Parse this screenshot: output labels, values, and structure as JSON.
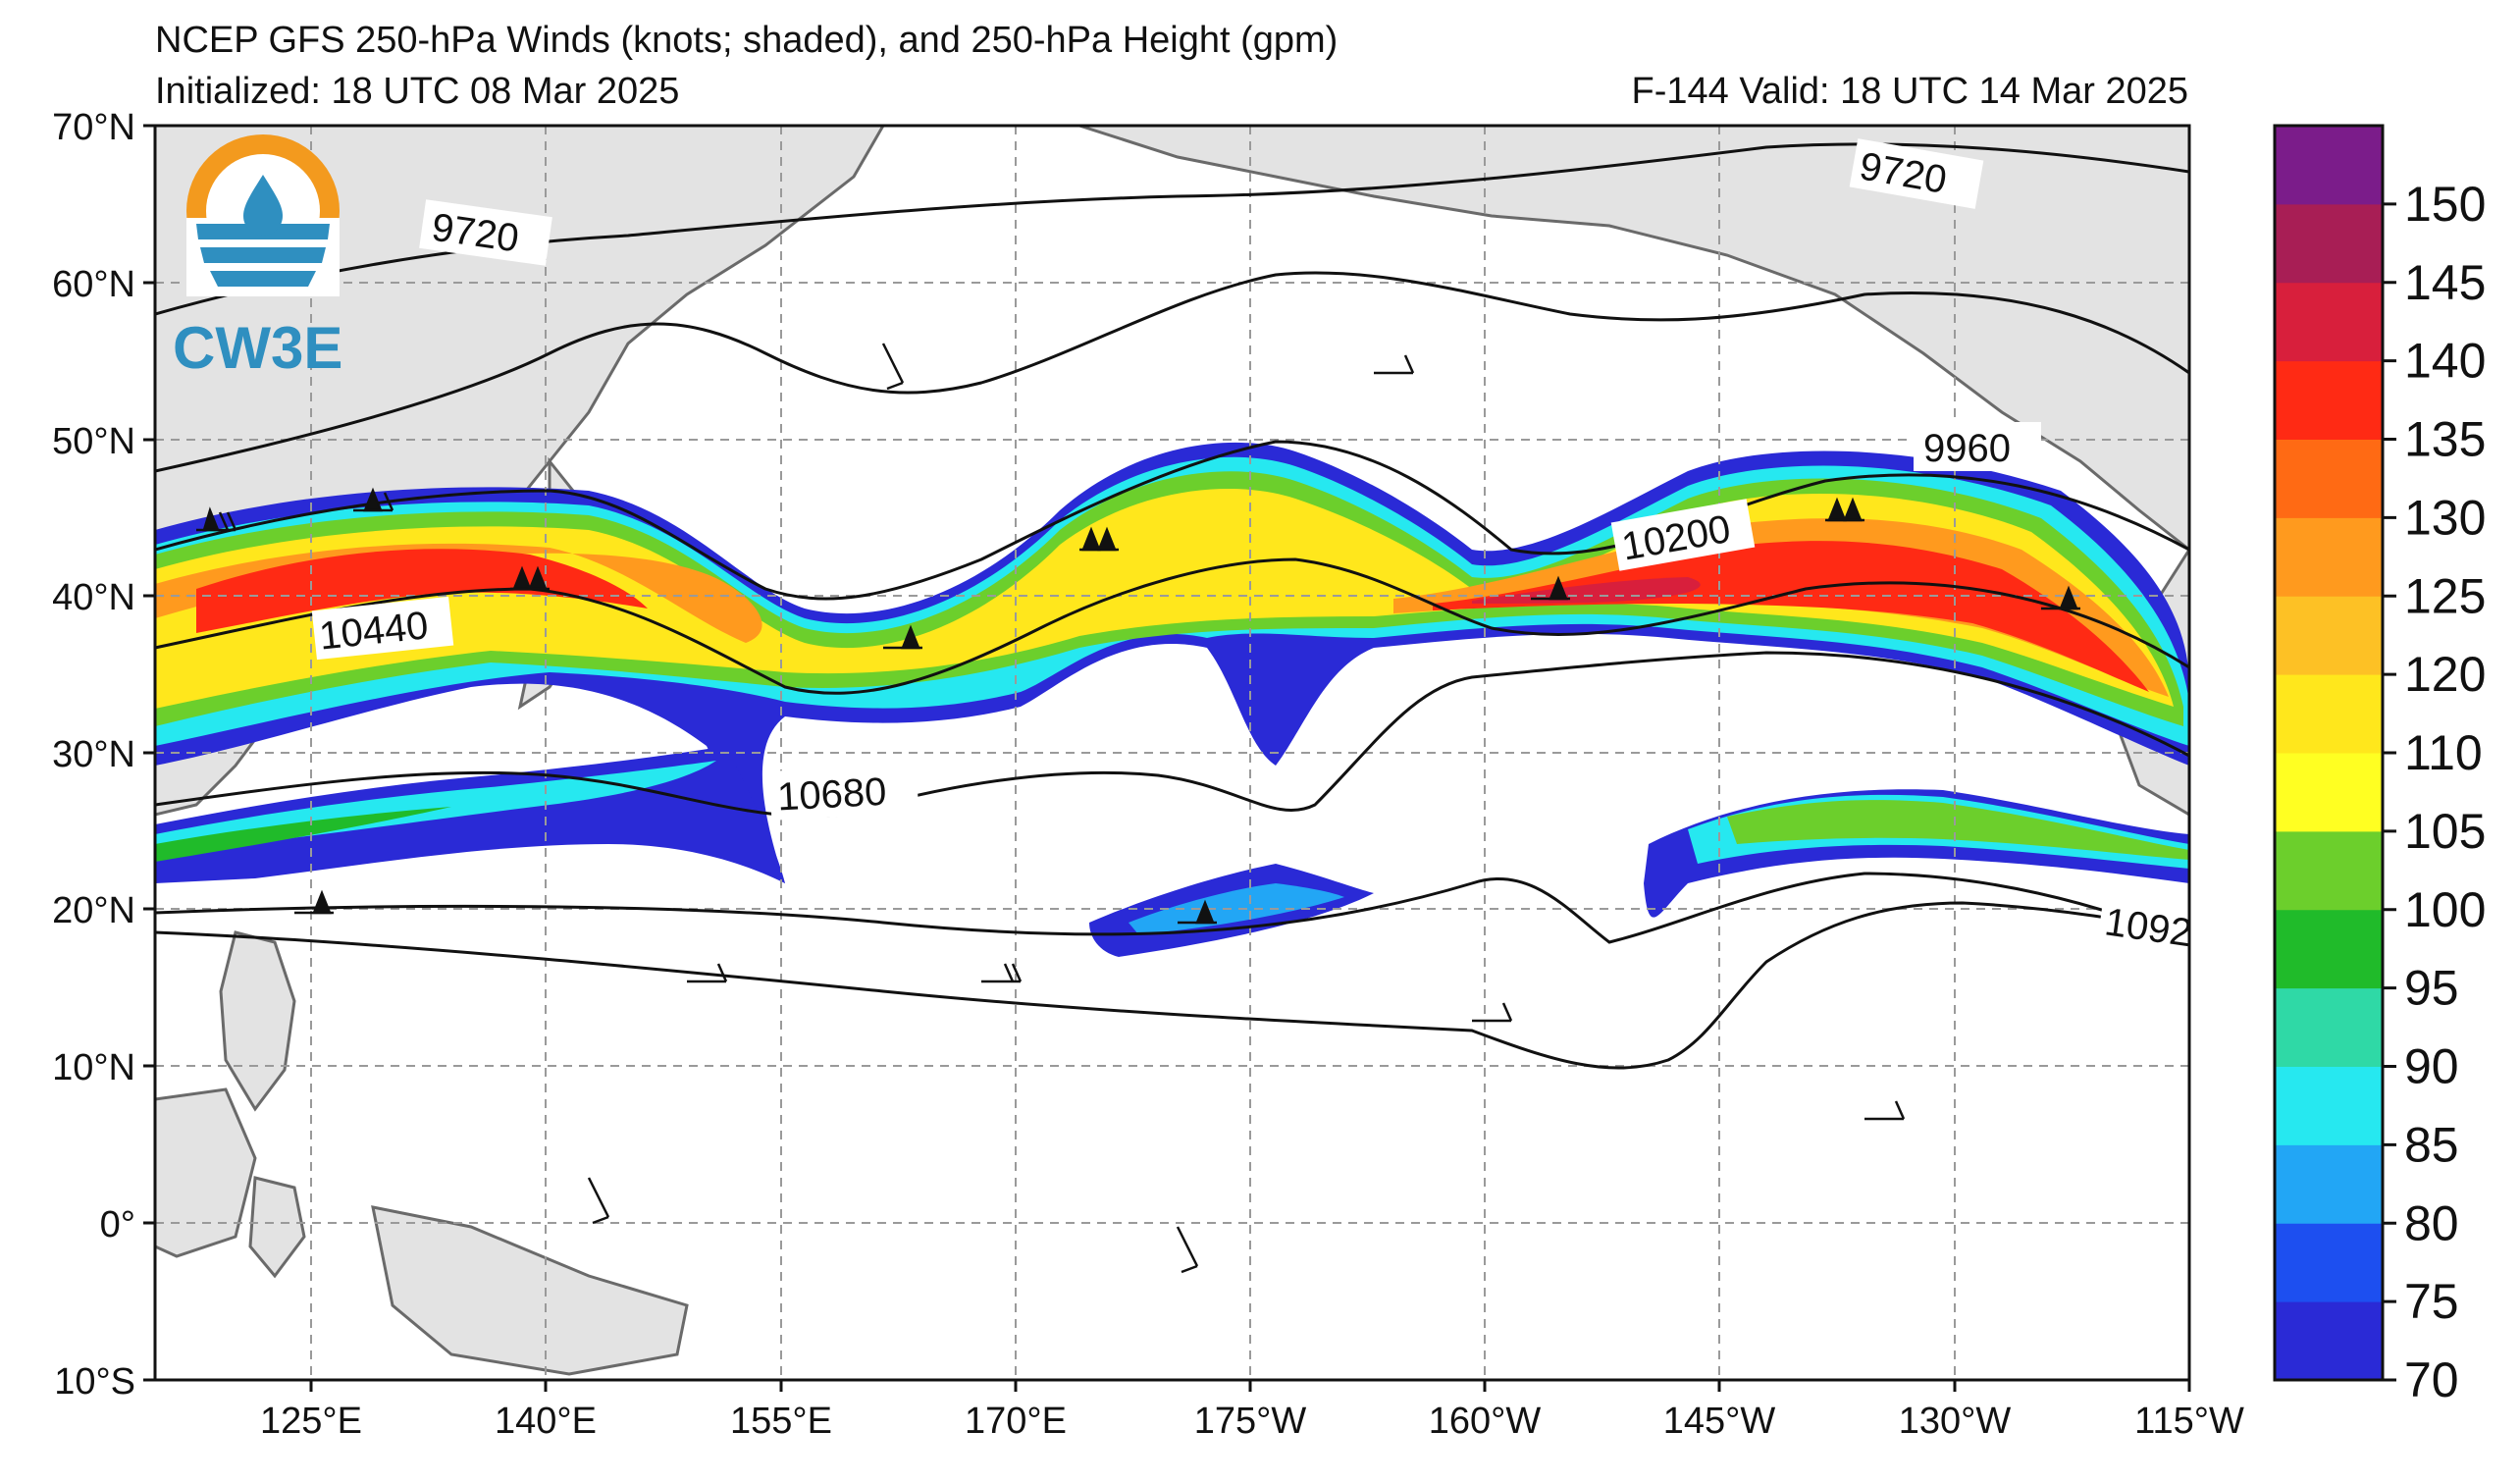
{
  "header": {
    "title": "NCEP GFS 250-hPa Winds (knots; shaded), and 250-hPa Height (gpm)",
    "initialized": "Initialized: 18 UTC 08 Mar 2025",
    "valid": "F-144  Valid: 18 UTC 14 Mar 2025"
  },
  "logo": {
    "text": "CW3E"
  },
  "map": {
    "lat_labels": [
      "70°N",
      "60°N",
      "50°N",
      "40°N",
      "30°N",
      "20°N",
      "10°N",
      "0°",
      "10°S"
    ],
    "lon_labels": [
      "125°E",
      "140°E",
      "155°E",
      "170°E",
      "175°W",
      "160°W",
      "145°W",
      "130°W",
      "115°W"
    ],
    "contour_labels": [
      "9720",
      "9720",
      "9960",
      "10200",
      "10440",
      "10680",
      "1092"
    ]
  },
  "colorbar": {
    "levels": [
      70,
      75,
      80,
      85,
      90,
      95,
      100,
      105,
      110,
      120,
      125,
      130,
      135,
      140,
      145,
      150
    ],
    "label_values": [
      "70",
      "75",
      "80",
      "85",
      "90",
      "95",
      "100",
      "105",
      "110",
      "120",
      "125",
      "130",
      "135",
      "140",
      "145",
      "150"
    ],
    "colors": [
      "#2a2ad6",
      "#1d4ff0",
      "#22a6f5",
      "#26e8f0",
      "#2fd9a6",
      "#20bb2a",
      "#6ccf2c",
      "#ffff22",
      "#ffe71c",
      "#fdc125",
      "#ff9a1e",
      "#ff6a14",
      "#ff2a14",
      "#d81f3c",
      "#a81e55",
      "#7b1c8a"
    ]
  }
}
